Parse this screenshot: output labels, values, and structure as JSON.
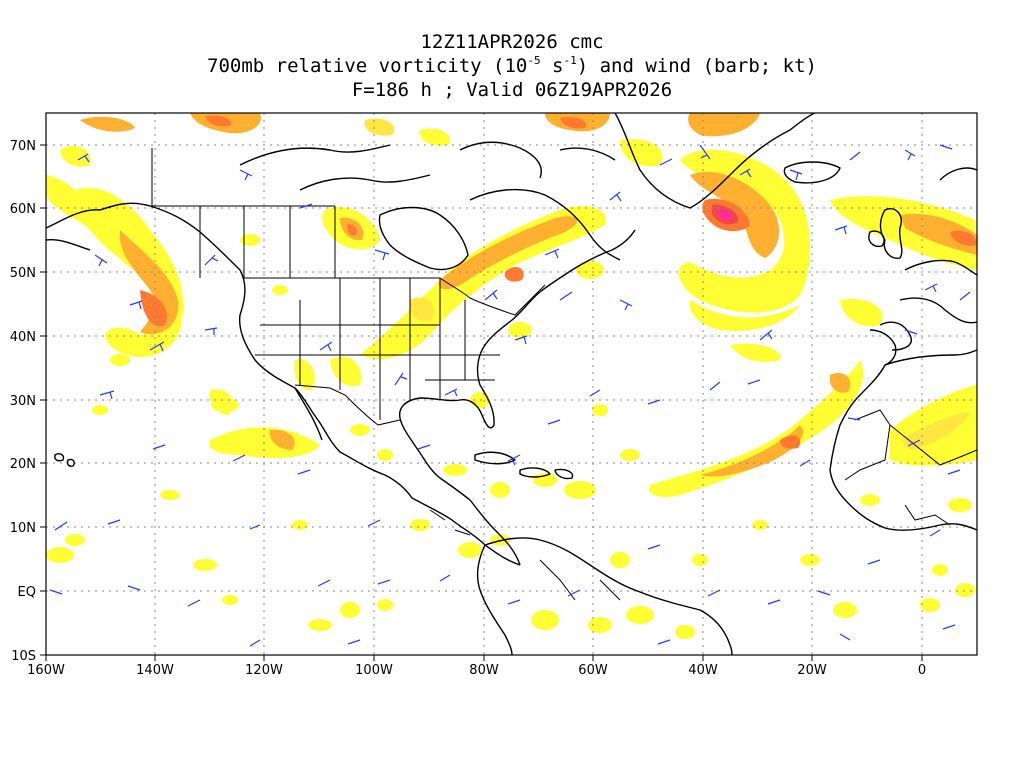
{
  "title": {
    "line1": "12Z11APR2026 cmc",
    "line2_pre": "700mb relative vorticity (10",
    "line2_exp1": "-5",
    "line2_mid": " s",
    "line2_exp2": "-1",
    "line2_post": ") and wind (barb; kt)",
    "line3": "F=186 h ; Valid 06Z19APR2026"
  },
  "axes": {
    "lon_labels": [
      "160W",
      "140W",
      "120W",
      "100W",
      "80W",
      "60W",
      "40W",
      "20W",
      "0"
    ],
    "lat_labels": [
      "70N",
      "60N",
      "50N",
      "40N",
      "30N",
      "20N",
      "10N",
      "EQ",
      "10S"
    ],
    "lon_range": [
      -160,
      10
    ],
    "lat_range": [
      -10,
      75
    ]
  },
  "colors": {
    "shade_light": "#ffff33",
    "shade_yellow": "#ffe640",
    "shade_orange": "#ffb030",
    "shade_dark_orange": "#ff7a30",
    "shade_red": "#f04848",
    "shade_magenta": "#ff2aa0",
    "barb": "#2040ff",
    "coast": "#000000",
    "grid": "#8a8a8a"
  }
}
